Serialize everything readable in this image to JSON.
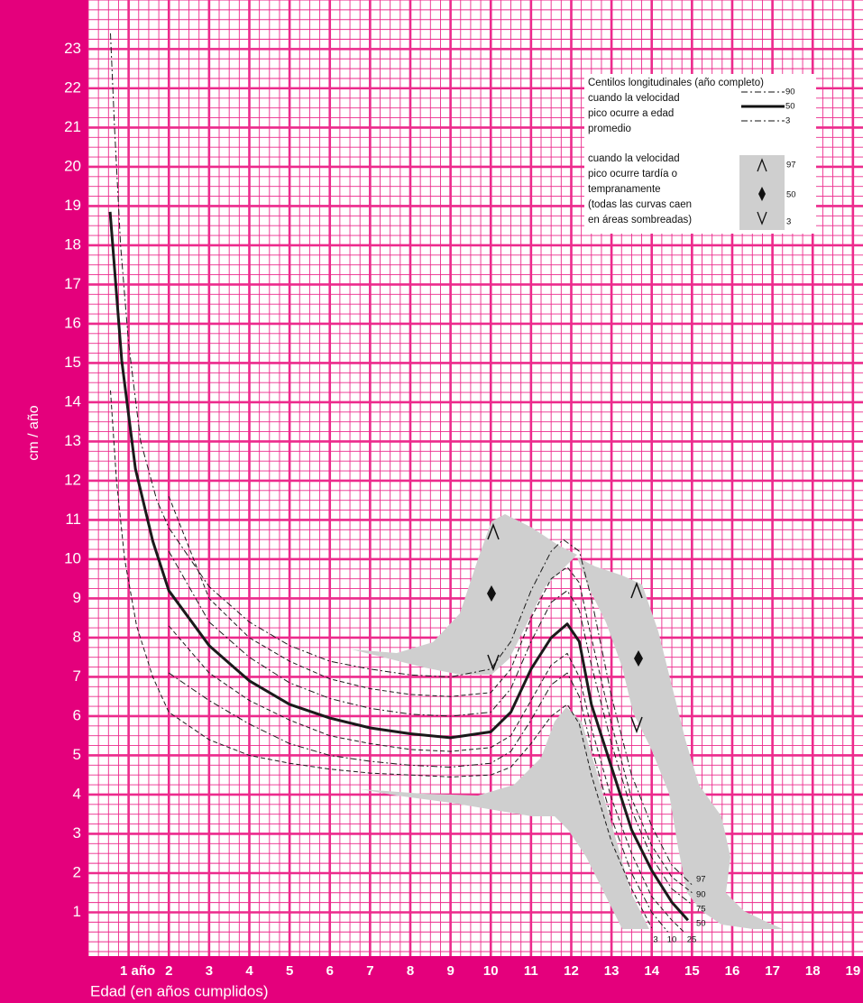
{
  "chart_data": {
    "type": "line",
    "ylabel": "cm / año",
    "xlabel": "Edad  (en años cumplidos)",
    "xlim": [
      0,
      19.25
    ],
    "ylim": [
      0,
      24.25
    ],
    "xticks": [
      {
        "value": 1,
        "label": "1 año"
      },
      2,
      3,
      4,
      5,
      6,
      7,
      8,
      9,
      10,
      11,
      12,
      13,
      14,
      15,
      16,
      17,
      18,
      19
    ],
    "yticks": [
      1,
      2,
      3,
      4,
      5,
      6,
      7,
      8,
      9,
      10,
      11,
      12,
      13,
      14,
      15,
      16,
      17,
      18,
      19,
      20,
      21,
      22,
      23
    ],
    "grid": true,
    "series": [
      {
        "name": "97",
        "color": "#1a1a1a",
        "style": "dashdot",
        "x": [
          0.55,
          0.65,
          0.8,
          1.0,
          1.3,
          1.7,
          2,
          3,
          4,
          5,
          6,
          7,
          8,
          9,
          10,
          10.5,
          11,
          11.5,
          11.8,
          12.2,
          12.5,
          13,
          13.5,
          14,
          14.5,
          15
        ],
        "values": [
          23.4,
          21,
          18,
          15.5,
          13,
          11.5,
          10.8,
          9.3,
          8.4,
          7.8,
          7.4,
          7.2,
          7.05,
          7.0,
          7.2,
          7.9,
          9.2,
          10.2,
          10.5,
          10.2,
          9,
          6.5,
          4.5,
          3.2,
          2.2,
          1.7
        ]
      },
      {
        "name": "90",
        "color": "#1a1a1a",
        "style": "dashed",
        "x": [
          2,
          3,
          4,
          5,
          6,
          7,
          8,
          9,
          10,
          10.5,
          11,
          11.5,
          11.9,
          12.2,
          12.5,
          13,
          13.5,
          14,
          14.5,
          15
        ],
        "values": [
          11.6,
          9.0,
          8.0,
          7.4,
          6.95,
          6.7,
          6.55,
          6.5,
          6.6,
          7.2,
          8.5,
          9.5,
          9.8,
          9.4,
          8.0,
          5.8,
          3.9,
          2.7,
          1.9,
          1.5
        ]
      },
      {
        "name": "75",
        "color": "#1a1a1a",
        "style": "dashdot",
        "x": [
          2,
          3,
          4,
          5,
          6,
          7,
          8,
          9,
          10,
          10.5,
          11,
          11.5,
          11.9,
          12.2,
          12.5,
          13,
          13.5,
          14,
          14.5,
          15
        ],
        "values": [
          10.2,
          8.4,
          7.5,
          6.85,
          6.45,
          6.2,
          6.05,
          6.0,
          6.1,
          6.7,
          7.9,
          8.9,
          9.2,
          8.7,
          7.3,
          5.3,
          3.6,
          2.4,
          1.6,
          1.2
        ]
      },
      {
        "name": "50",
        "color": "#1a1a1a",
        "style": "solid",
        "x": [
          0.54,
          0.83,
          1.17,
          1.6,
          2,
          3,
          4,
          5,
          6,
          7,
          8,
          9,
          10,
          10.5,
          11,
          11.5,
          11.9,
          12.2,
          12.5,
          13,
          13.5,
          14,
          14.5,
          14.9
        ],
        "values": [
          18.85,
          15.06,
          12.3,
          10.46,
          9.2,
          7.8,
          6.9,
          6.3,
          5.95,
          5.7,
          5.55,
          5.45,
          5.6,
          6.1,
          7.2,
          8.0,
          8.35,
          7.9,
          6.3,
          4.7,
          3.1,
          2.07,
          1.26,
          0.8
        ]
      },
      {
        "name": "25",
        "color": "#1a1a1a",
        "style": "dashed",
        "x": [
          2,
          3,
          4,
          5,
          6,
          7,
          8,
          9,
          10,
          10.5,
          11,
          11.5,
          11.9,
          12.2,
          12.5,
          13,
          13.5,
          14,
          14.5,
          14.8
        ],
        "values": [
          8.3,
          7.1,
          6.4,
          5.9,
          5.5,
          5.3,
          5.15,
          5.1,
          5.2,
          5.5,
          6.4,
          7.3,
          7.6,
          7.0,
          5.7,
          3.9,
          2.5,
          1.4,
          0.8,
          0.5
        ]
      },
      {
        "name": "10",
        "color": "#1a1a1a",
        "style": "dashdot",
        "x": [
          2,
          3,
          4,
          5,
          6,
          7,
          8,
          9,
          10,
          10.5,
          11,
          11.5,
          11.9,
          12.2,
          12.5,
          13,
          13.5,
          14,
          14.4
        ],
        "values": [
          7.1,
          6.4,
          5.8,
          5.3,
          5.0,
          4.85,
          4.75,
          4.7,
          4.8,
          5.1,
          5.9,
          6.8,
          7.1,
          6.5,
          5.2,
          3.4,
          2.0,
          1.0,
          0.5
        ]
      },
      {
        "name": "3",
        "color": "#1a1a1a",
        "style": "dashed",
        "x": [
          0.55,
          0.7,
          0.9,
          1.2,
          1.6,
          2,
          3,
          4,
          5,
          6,
          7,
          8,
          9,
          10,
          10.5,
          11,
          11.5,
          11.9,
          12.2,
          12.5,
          13,
          13.5,
          14
        ],
        "values": [
          14.3,
          12,
          10,
          8.3,
          7,
          6.1,
          5.4,
          5.0,
          4.8,
          4.65,
          4.55,
          4.5,
          4.45,
          4.5,
          4.7,
          5.3,
          6.0,
          6.3,
          5.8,
          4.5,
          2.8,
          1.6,
          0.6
        ]
      }
    ],
    "legend": {
      "title": "Centilos longitudinales (año completo)",
      "average": [
        "cuando la velocidad",
        "pico ocurre a edad",
        "promedio"
      ],
      "average_keys": [
        "90",
        "50",
        "3"
      ],
      "shifted": [
        "cuando la velocidad",
        "pico ocurre tardía o",
        "tempranamente",
        "(todas las curvas caen",
        "en áreas sombreadas)"
      ],
      "shifted_keys": [
        "97",
        "50",
        "3"
      ]
    }
  }
}
